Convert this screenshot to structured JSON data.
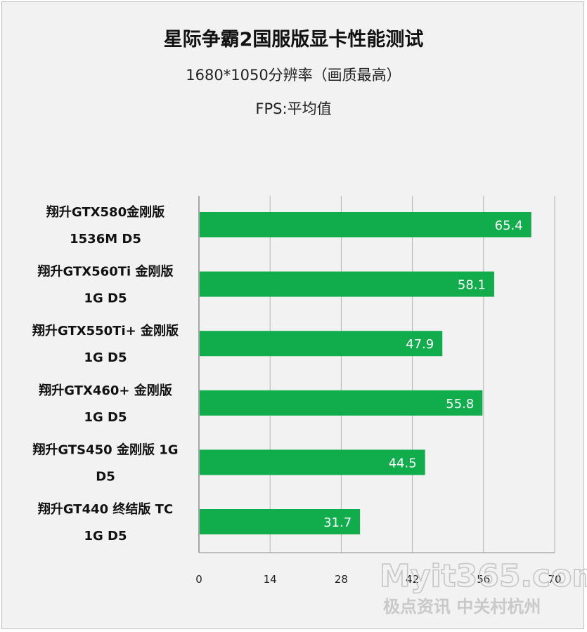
{
  "chart_data": {
    "type": "bar",
    "orientation": "horizontal",
    "title": "星际争霸2国服版显卡性能测试",
    "subtitles": [
      "1680*1050分辨率（画质最高）",
      "FPS:平均值"
    ],
    "categories": [
      [
        "翔升GTX580金刚版",
        "1536M D5"
      ],
      [
        "翔升GTX560Ti 金刚版",
        "1G D5"
      ],
      [
        "翔升GTX550Ti+ 金刚版",
        "1G D5"
      ],
      [
        "翔升GTX460+ 金刚版",
        "1G D5"
      ],
      [
        "翔升GTS450 金刚版 1G",
        "D5"
      ],
      [
        "翔升GT440 终结版 TC",
        "1G D5"
      ]
    ],
    "values": [
      65.4,
      58.1,
      47.9,
      55.8,
      44.5,
      31.7
    ],
    "value_labels": [
      "65.4",
      "58.1",
      "47.9",
      "55.8",
      "44.5",
      "31.7"
    ],
    "xlim": [
      0,
      70
    ],
    "xticks": [
      0,
      14,
      28,
      42,
      56,
      70
    ],
    "grid": true,
    "legend": "none",
    "bar_color": "#11ad4c"
  },
  "watermark": {
    "brand": "Myit365.com",
    "tagline": "极点资讯 中关村杭州"
  }
}
